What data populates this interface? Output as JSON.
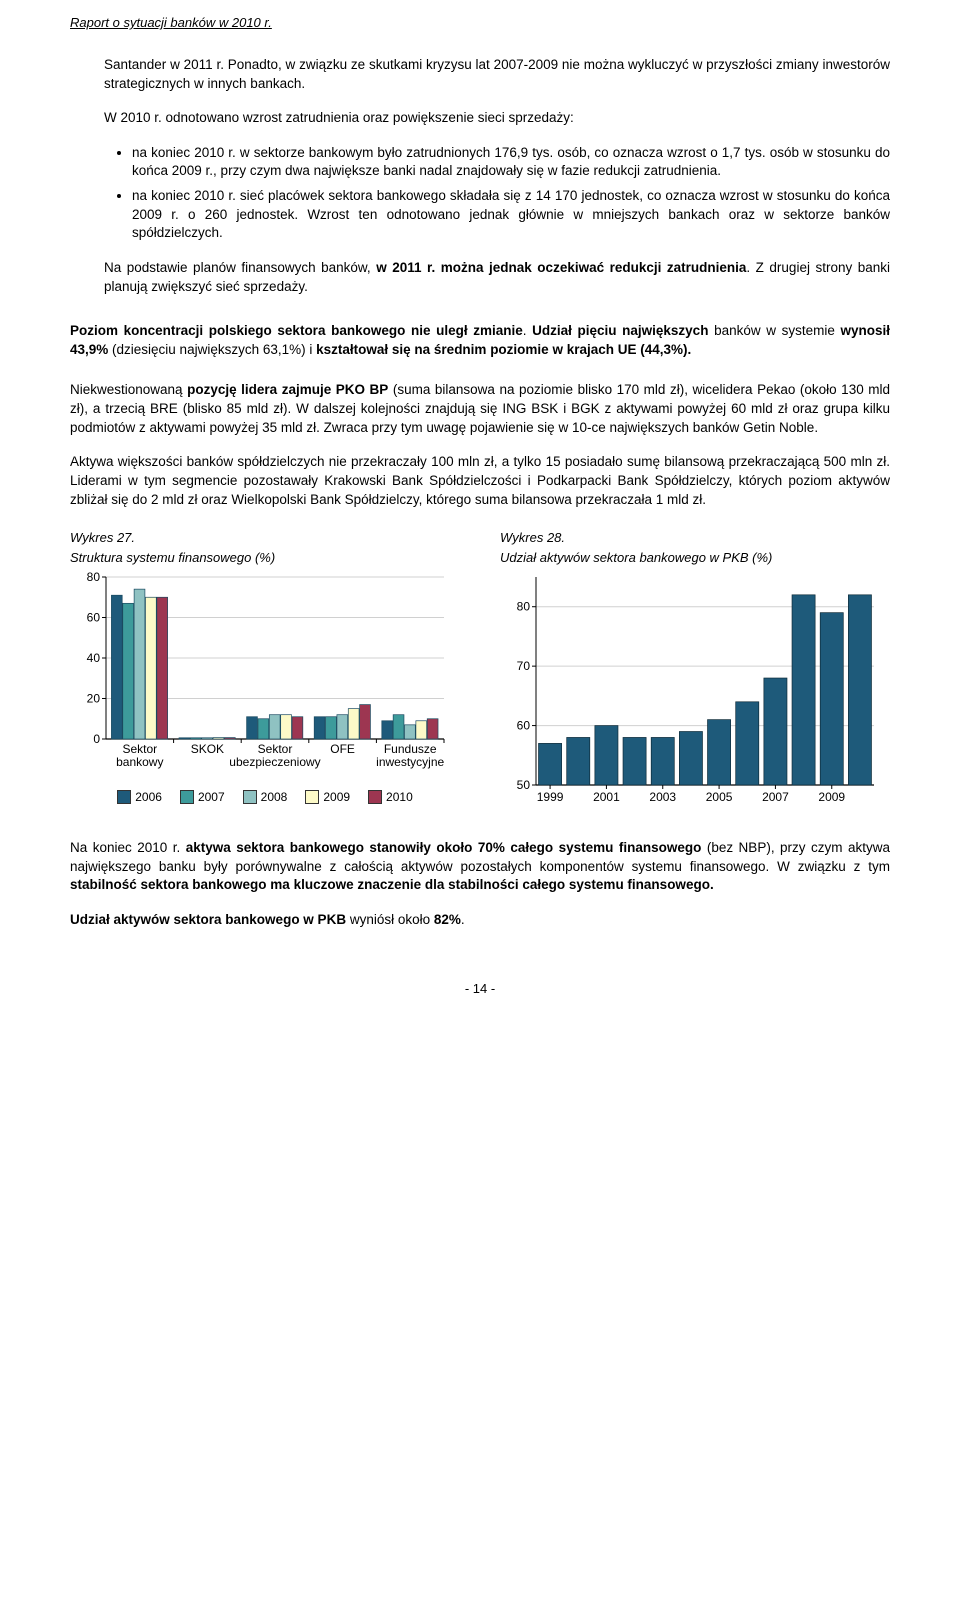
{
  "header": "Raport o sytuacji banków w 2010 r.",
  "para1_a": "Santander w 2011 r. Ponadto, w związku ze skutkami kryzysu lat 2007-2009 nie można wykluczyć w przyszłości zmiany inwestorów strategicznych w innych bankach.",
  "para2": "W 2010 r. odnotowano wzrost zatrudnienia oraz powiększenie sieci sprzedaży:",
  "bullet1": "na koniec 2010 r. w sektorze bankowym było zatrudnionych 176,9 tys. osób, co oznacza wzrost o 1,7 tys. osób w stosunku do końca 2009 r., przy czym dwa największe banki nadal znajdowały się w fazie redukcji zatrudnienia.",
  "bullet2": "na koniec 2010 r. sieć placówek sektora bankowego składała się z 14 170 jednostek, co oznacza wzrost w stosunku do końca 2009 r. o 260 jednostek. Wzrost ten odnotowano jednak głównie w mniejszych bankach oraz w sektorze banków spółdzielczych.",
  "para3_a": "Na podstawie planów finansowych banków, ",
  "para3_b": "w 2011 r. można jednak oczekiwać redukcji zatrudnienia",
  "para3_c": ". Z drugiej strony banki planują zwiększyć sieć sprzedaży.",
  "para4_a": "Poziom koncentracji polskiego sektora bankowego nie uległ zmianie",
  "para4_b": ". ",
  "para4_c": "Udział pięciu największych",
  "para4_d": " banków w systemie ",
  "para4_e": "wynosił 43,9%",
  "para4_f": " (dziesięciu największych 63,1%) i ",
  "para4_g": "kształtował się na średnim poziomie w krajach UE (44,3%).",
  "para5_a": "Niekwestionowaną ",
  "para5_b": "pozycję lidera zajmuje PKO BP",
  "para5_c": " (suma bilansowa na poziomie blisko 170 mld zł), wicelidera Pekao (około 130 mld zł), a trzecią BRE (blisko 85 mld zł). W dalszej kolejności znajdują się ING BSK i BGK z aktywami powyżej 60 mld zł oraz grupa kilku podmiotów z aktywami powyżej 35 mld zł. Zwraca przy tym uwagę pojawienie się w 10-ce największych banków Getin Noble.",
  "para6": "Aktywa większości banków spółdzielczych nie przekraczały 100 mln zł, a tylko 15 posiadało sumę bilansową przekraczającą 500 mln zł. Liderami w tym segmencie pozostawały Krakowski Bank Spółdzielczości i Podkarpacki Bank Spółdzielczy, których poziom aktywów zbliżał się do 2 mld zł oraz Wielkopolski Bank Spółdzielczy, którego suma bilansowa przekraczała 1 mld zł.",
  "chart27": {
    "title_line1": "Wykres 27.",
    "title_line2": "Struktura systemu finansowego (%)",
    "type": "grouped-bar",
    "categories": [
      "Sektor bankowy",
      "SKOK",
      "Sektor ubezpieczeniowy",
      "OFE",
      "Fundusze inwestycyjne"
    ],
    "series": [
      {
        "label": "2006",
        "color": "#1e5a7a",
        "values": [
          71,
          0.6,
          11,
          11,
          9
        ]
      },
      {
        "label": "2007",
        "color": "#3d9b9b",
        "values": [
          67,
          0.6,
          10,
          11,
          12
        ]
      },
      {
        "label": "2008",
        "color": "#8fc2c2",
        "values": [
          74,
          0.6,
          12,
          12,
          7
        ]
      },
      {
        "label": "2009",
        "color": "#fdfac8",
        "values": [
          70,
          0.7,
          12,
          15,
          9
        ]
      },
      {
        "label": "2010",
        "color": "#9d3651",
        "values": [
          70,
          0.7,
          11,
          17,
          10
        ]
      }
    ],
    "ylim": [
      0,
      80
    ],
    "yticks": [
      0,
      20,
      40,
      60,
      80
    ],
    "grid_color": "#d0d0d0",
    "bar_border": "#1a4a60",
    "axis_color": "#000000",
    "tick_font_size": 12,
    "cat_font_size": 12
  },
  "chart28": {
    "title_line1": "Wykres 28.",
    "title_line2": "Udział aktywów sektora bankowego w PKB (%)",
    "type": "bar",
    "xticks": [
      "1999",
      "2001",
      "2003",
      "2005",
      "2007",
      "2009"
    ],
    "values": [
      57,
      58,
      60,
      58,
      58,
      59,
      61,
      64,
      68,
      82,
      79,
      82
    ],
    "year_start": 1999,
    "ylim": [
      50,
      85
    ],
    "yticks": [
      50,
      60,
      70,
      80
    ],
    "bar_color": "#1e5a7a",
    "bar_border": "#0d2a38",
    "grid_color": "#d0d0d0",
    "axis_color": "#000000",
    "tick_font_size": 12
  },
  "para7_a": "Na koniec 2010 r. ",
  "para7_b": "aktywa sektora bankowego stanowiły około 70% całego systemu finansowego",
  "para7_c": " (bez NBP), przy czym aktywa największego banku były porównywalne z całością aktywów pozostałych komponentów systemu finansowego. W związku z tym ",
  "para7_d": "stabilność sektora bankowego ma kluczowe znaczenie dla stabilności całego systemu finansowego.",
  "para8_a": "Udział aktywów sektora bankowego w PKB",
  "para8_b": " wyniósł około ",
  "para8_c": "82%",
  "para8_d": ".",
  "footer": "- 14 -"
}
